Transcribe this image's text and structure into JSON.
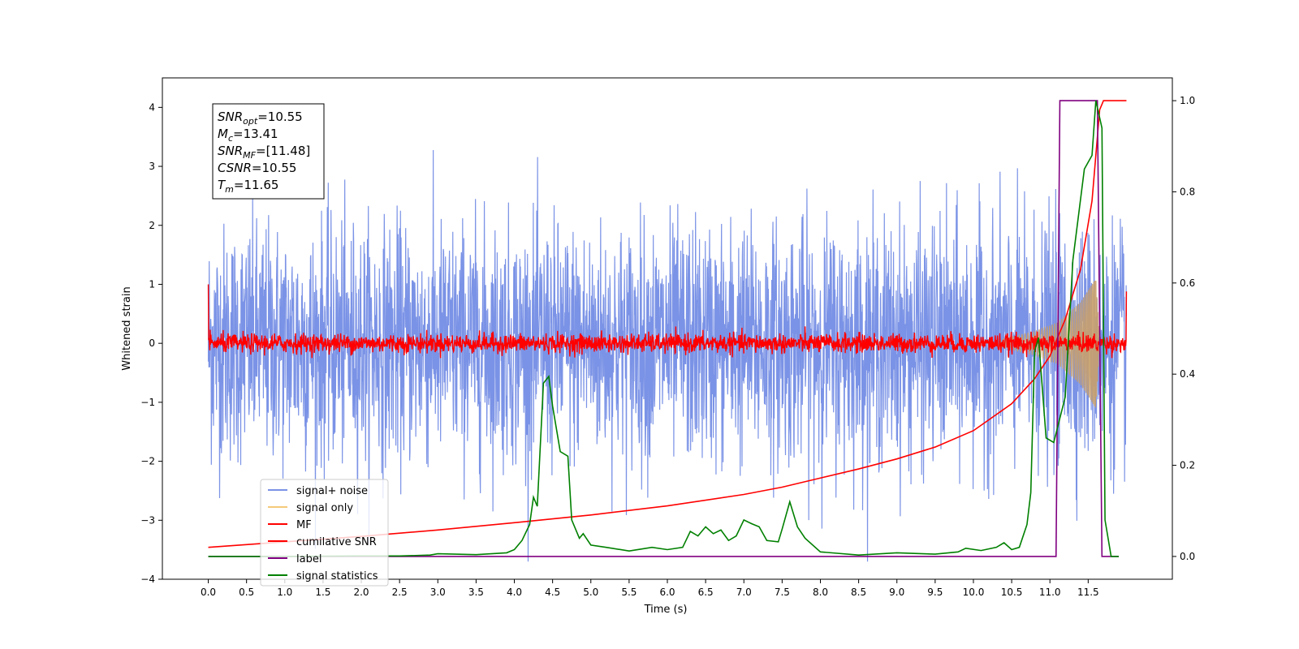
{
  "chart_data": {
    "type": "line",
    "xlabel": "Time (s)",
    "ylabel_left": "Whitened strain",
    "xlim": [
      -0.6,
      12.6
    ],
    "ylim_left": [
      -4.0,
      4.5
    ],
    "ylim_right": [
      -0.05,
      1.05
    ],
    "xticks": [
      "0.0",
      "0.5",
      "1.0",
      "1.5",
      "2.0",
      "2.5",
      "3.0",
      "3.5",
      "4.0",
      "4.5",
      "5.0",
      "5.5",
      "6.0",
      "6.5",
      "7.0",
      "7.5",
      "8.0",
      "8.5",
      "9.0",
      "9.5",
      "10.0",
      "10.5",
      "11.0",
      "11.5"
    ],
    "yticks_left": [
      "4",
      "3",
      "2",
      "1",
      "0",
      "−1",
      "−2",
      "−3",
      "−4"
    ],
    "yticks_right": [
      "1.0",
      "0.8",
      "0.6",
      "0.4",
      "0.2",
      "0.0"
    ],
    "annotation": {
      "lines": [
        {
          "sym": "SNR",
          "sub": "opt",
          "val": "=10.55"
        },
        {
          "sym": "M",
          "sub": "c",
          "val": "=13.41"
        },
        {
          "sym": "SNR",
          "sub": "MF",
          "val": "=[11.48]"
        },
        {
          "sym": "CSNR",
          "sub": "",
          "val": "=10.55"
        },
        {
          "sym": "T",
          "sub": "m",
          "val": "=11.65"
        }
      ]
    },
    "legend": {
      "placement": "lower-left",
      "entries": [
        {
          "label": "signal+ noise",
          "color": "#7b93e6"
        },
        {
          "label": "signal only",
          "color": "#f5c97a"
        },
        {
          "label": "MF",
          "color": "#ff0000"
        },
        {
          "label": "cumilative SNR",
          "color": "#ff0000"
        },
        {
          "label": "label",
          "color": "#800080"
        },
        {
          "label": "signal statistics",
          "color": "#008000"
        }
      ]
    },
    "series": [
      {
        "name": "signal+ noise",
        "axis": "left",
        "color": "#7b93e6",
        "kind": "noise",
        "t_range": [
          0,
          12.0
        ],
        "sigma": 1.0
      },
      {
        "name": "signal only",
        "axis": "left",
        "color": "#c9a06a",
        "kind": "chirp",
        "t_range": [
          10.3,
          11.65
        ],
        "envelope": [
          [
            10.3,
            0.05
          ],
          [
            10.8,
            0.2
          ],
          [
            11.1,
            0.35
          ],
          [
            11.4,
            0.7
          ],
          [
            11.6,
            1.1
          ],
          [
            11.65,
            0.0
          ]
        ]
      },
      {
        "name": "MF",
        "axis": "left",
        "color": "#ff0000",
        "kind": "noise",
        "t_range": [
          0,
          12.0
        ],
        "sigma": 0.08,
        "start_value": 1.0,
        "end_value": 0.88
      },
      {
        "name": "cumilative SNR",
        "axis": "right",
        "color": "#ff0000",
        "points": [
          [
            0.0,
            0.02
          ],
          [
            1.0,
            0.032
          ],
          [
            2.0,
            0.044
          ],
          [
            3.0,
            0.058
          ],
          [
            4.0,
            0.074
          ],
          [
            5.0,
            0.091
          ],
          [
            6.0,
            0.111
          ],
          [
            7.0,
            0.136
          ],
          [
            7.5,
            0.152
          ],
          [
            8.0,
            0.172
          ],
          [
            8.5,
            0.192
          ],
          [
            9.0,
            0.214
          ],
          [
            9.5,
            0.24
          ],
          [
            10.0,
            0.276
          ],
          [
            10.5,
            0.335
          ],
          [
            10.8,
            0.39
          ],
          [
            11.0,
            0.44
          ],
          [
            11.2,
            0.52
          ],
          [
            11.4,
            0.63
          ],
          [
            11.55,
            0.78
          ],
          [
            11.65,
            0.98
          ],
          [
            11.7,
            1.0
          ],
          [
            12.0,
            1.0
          ]
        ]
      },
      {
        "name": "label",
        "axis": "right",
        "color": "#800080",
        "points": [
          [
            0.0,
            0.0
          ],
          [
            11.08,
            0.0
          ],
          [
            11.13,
            1.0
          ],
          [
            11.62,
            1.0
          ],
          [
            11.68,
            0.0
          ],
          [
            11.9,
            0.0
          ]
        ]
      },
      {
        "name": "signal statistics",
        "axis": "right",
        "color": "#008000",
        "points": [
          [
            0.0,
            0.0
          ],
          [
            1.0,
            0.0
          ],
          [
            2.0,
            0.001
          ],
          [
            2.5,
            0.001
          ],
          [
            2.9,
            0.003
          ],
          [
            3.0,
            0.006
          ],
          [
            3.5,
            0.004
          ],
          [
            3.9,
            0.008
          ],
          [
            4.0,
            0.015
          ],
          [
            4.1,
            0.035
          ],
          [
            4.2,
            0.07
          ],
          [
            4.25,
            0.13
          ],
          [
            4.3,
            0.11
          ],
          [
            4.38,
            0.38
          ],
          [
            4.45,
            0.395
          ],
          [
            4.5,
            0.33
          ],
          [
            4.6,
            0.23
          ],
          [
            4.7,
            0.22
          ],
          [
            4.75,
            0.08
          ],
          [
            4.85,
            0.04
          ],
          [
            4.9,
            0.05
          ],
          [
            5.0,
            0.025
          ],
          [
            5.2,
            0.02
          ],
          [
            5.5,
            0.012
          ],
          [
            5.8,
            0.02
          ],
          [
            6.0,
            0.015
          ],
          [
            6.2,
            0.02
          ],
          [
            6.3,
            0.055
          ],
          [
            6.4,
            0.045
          ],
          [
            6.5,
            0.065
          ],
          [
            6.6,
            0.05
          ],
          [
            6.7,
            0.058
          ],
          [
            6.8,
            0.035
          ],
          [
            6.9,
            0.045
          ],
          [
            7.0,
            0.08
          ],
          [
            7.1,
            0.072
          ],
          [
            7.2,
            0.065
          ],
          [
            7.3,
            0.035
          ],
          [
            7.45,
            0.032
          ],
          [
            7.5,
            0.06
          ],
          [
            7.6,
            0.12
          ],
          [
            7.7,
            0.065
          ],
          [
            7.8,
            0.04
          ],
          [
            8.0,
            0.01
          ],
          [
            8.5,
            0.003
          ],
          [
            9.0,
            0.008
          ],
          [
            9.5,
            0.005
          ],
          [
            9.8,
            0.01
          ],
          [
            9.9,
            0.018
          ],
          [
            10.1,
            0.013
          ],
          [
            10.3,
            0.02
          ],
          [
            10.4,
            0.03
          ],
          [
            10.5,
            0.015
          ],
          [
            10.6,
            0.02
          ],
          [
            10.7,
            0.07
          ],
          [
            10.75,
            0.14
          ],
          [
            10.8,
            0.45
          ],
          [
            10.85,
            0.48
          ],
          [
            10.95,
            0.26
          ],
          [
            11.05,
            0.25
          ],
          [
            11.2,
            0.35
          ],
          [
            11.3,
            0.65
          ],
          [
            11.45,
            0.85
          ],
          [
            11.55,
            0.88
          ],
          [
            11.6,
            1.0
          ],
          [
            11.68,
            0.94
          ],
          [
            11.72,
            0.08
          ],
          [
            11.8,
            0.0
          ],
          [
            11.9,
            0.0
          ]
        ]
      }
    ]
  }
}
